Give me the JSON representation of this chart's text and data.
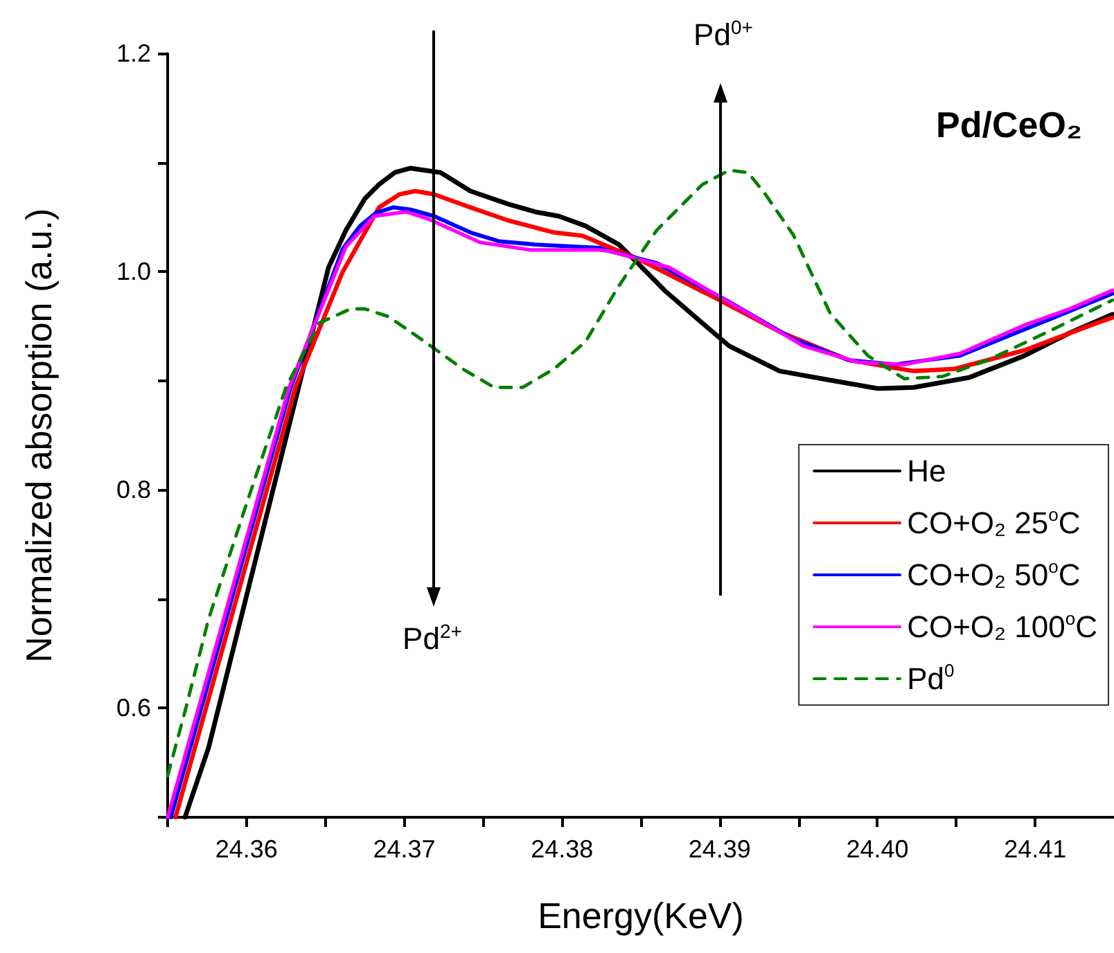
{
  "chart_data": {
    "type": "line",
    "title": "Pd/CeO₂",
    "xlabel": "Energy(KeV)",
    "ylabel": "Normalized absorption (a.u.)",
    "annotations": [
      "Pd$^{2+}$",
      "Pd$^{0+}$"
    ],
    "xlim": [
      24.355,
      24.415
    ],
    "ylim": [
      0.5,
      1.2
    ],
    "xticks": [
      {
        "value": 24.355,
        "label": null
      },
      24.36,
      {
        "value": 24.365,
        "label": null
      },
      24.37,
      {
        "value": 24.375,
        "label": null
      },
      24.38,
      {
        "value": 24.385,
        "label": null
      },
      24.39,
      {
        "value": 24.395,
        "label": null
      },
      {
        "value": 24.4,
        "label": "24.40"
      },
      {
        "value": 24.405,
        "label": null
      },
      24.41
    ],
    "yticks": [
      {
        "value": 0.5,
        "label": null
      },
      0.6,
      {
        "value": 0.7,
        "label": null
      },
      0.8,
      {
        "value": 0.9,
        "label": null
      },
      {
        "value": 1,
        "label": "1.0"
      },
      {
        "value": 1.1,
        "label": null
      },
      1.2
    ],
    "grid": false,
    "legend": "bottom right",
    "marker": "none",
    "series": [
      {
        "name": "He",
        "color": "#000000",
        "line_style": "solid",
        "x": [
          24.3561,
          24.3576,
          24.3633,
          24.3652,
          24.3663,
          24.3675,
          24.3684,
          24.3694,
          24.3704,
          24.3723,
          24.3742,
          24.3766,
          24.3783,
          24.3798,
          24.3815,
          24.3836,
          24.3848,
          24.3865,
          24.3889,
          24.3906,
          24.3938,
          24.3965,
          24.4,
          24.4023,
          24.4058,
          24.4093,
          24.4122,
          24.4149
        ],
        "values": [
          0.5,
          0.564,
          0.894,
          1.004,
          1.038,
          1.067,
          1.08,
          1.091,
          1.095,
          1.091,
          1.074,
          1.062,
          1.055,
          1.051,
          1.042,
          1.025,
          1.008,
          0.983,
          0.953,
          0.932,
          0.909,
          0.902,
          0.893,
          0.894,
          0.903,
          0.923,
          0.944,
          0.961
        ]
      },
      {
        "name": "CO+O₂ 25$^{o}$C",
        "color": "#ff0000",
        "line_style": "solid",
        "x": [
          24.3555,
          24.3631,
          24.3661,
          24.3684,
          24.3697,
          24.3707,
          24.3719,
          24.3742,
          24.3766,
          24.3795,
          24.3813,
          24.3836,
          24.3848,
          24.39,
          24.3938,
          24.3982,
          24.4023,
          24.4049,
          24.4093,
          24.4139,
          24.4149
        ],
        "values": [
          0.5,
          0.894,
          1.0,
          1.059,
          1.071,
          1.074,
          1.071,
          1.059,
          1.047,
          1.036,
          1.033,
          1.019,
          1.012,
          0.974,
          0.945,
          0.919,
          0.909,
          0.911,
          0.928,
          0.953,
          0.958
        ]
      },
      {
        "name": "CO+O₂ 50$^{o}$C",
        "color": "#0000ff",
        "line_style": "solid",
        "x": [
          24.3552,
          24.3628,
          24.3661,
          24.3672,
          24.3682,
          24.3693,
          24.3704,
          24.3719,
          24.3742,
          24.376,
          24.3783,
          24.3824,
          24.383,
          24.386,
          24.3904,
          24.3947,
          24.3982,
          24.4011,
          24.4052,
          24.4093,
          24.4122,
          24.4149
        ],
        "values": [
          0.5,
          0.894,
          1.021,
          1.042,
          1.054,
          1.059,
          1.057,
          1.051,
          1.036,
          1.028,
          1.025,
          1.022,
          1.019,
          1.008,
          0.974,
          0.938,
          0.919,
          0.915,
          0.923,
          0.947,
          0.964,
          0.98
        ]
      },
      {
        "name": "CO+O₂ 100$^{o}$C",
        "color": "#ff00ff",
        "line_style": "solid",
        "x": [
          24.355,
          24.3627,
          24.3663,
          24.3681,
          24.3701,
          24.3716,
          24.3748,
          24.378,
          24.3824,
          24.383,
          24.3868,
          24.3918,
          24.3953,
          24.3988,
          24.4017,
          24.4052,
          24.4093,
          24.4122,
          24.4149
        ],
        "values": [
          0.5,
          0.894,
          1.023,
          1.051,
          1.055,
          1.048,
          1.027,
          1.02,
          1.02,
          1.019,
          1.004,
          0.962,
          0.932,
          0.917,
          0.915,
          0.925,
          0.951,
          0.966,
          0.983
        ]
      },
      {
        "name": "Pd$^{0}$",
        "color": "#008000",
        "line_style": "dashed",
        "x": [
          24.355,
          24.3561,
          24.3576,
          24.3602,
          24.3625,
          24.3646,
          24.3666,
          24.3675,
          24.369,
          24.3713,
          24.3737,
          24.3757,
          24.3775,
          24.3795,
          24.3815,
          24.3836,
          24.386,
          24.3889,
          24.3906,
          24.3918,
          24.3929,
          24.3947,
          24.397,
          24.3994,
          24.4017,
          24.4041,
          24.407,
          24.4111,
          24.4149
        ],
        "values": [
          0.538,
          0.597,
          0.682,
          0.796,
          0.894,
          0.953,
          0.966,
          0.966,
          0.959,
          0.936,
          0.911,
          0.894,
          0.894,
          0.911,
          0.936,
          0.987,
          1.038,
          1.08,
          1.093,
          1.091,
          1.071,
          1.033,
          0.962,
          0.923,
          0.902,
          0.904,
          0.919,
          0.947,
          0.974
        ]
      }
    ]
  }
}
